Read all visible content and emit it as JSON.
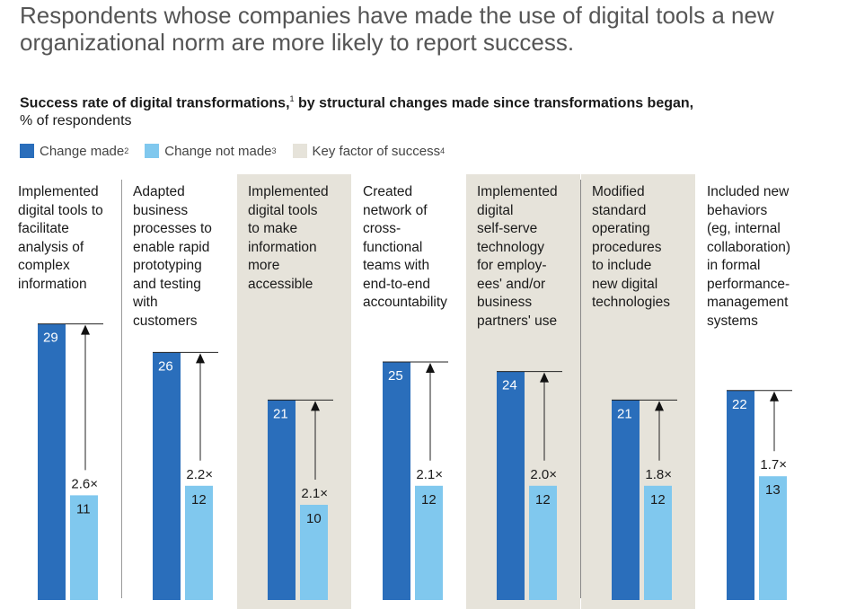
{
  "headline": "Respondents whose companies have made the use of digital tools a new organizational norm are more likely to report success.",
  "subtitle": {
    "bold": "Success rate of digital transformations,",
    "sup": "1",
    "bold_rest": " by structural changes made since transformations began,",
    "normal": "% of respondents"
  },
  "legend": {
    "made": {
      "label": "Change made",
      "sup": "2",
      "color": "#2a6ebb"
    },
    "not_made": {
      "label": "Change not made",
      "sup": "3",
      "color": "#80c8ee"
    },
    "key": {
      "label": "Key factor of success",
      "sup": "4",
      "color": "#e6e3da"
    }
  },
  "chart_data": {
    "type": "bar",
    "categories": [
      "Implemented digital tools to facilitate analysis of complex information",
      "Adapted business processes to enable rapid prototyping and testing with customers",
      "Implemented digital tools to make information more accessible",
      "Created network of cross-functional teams with end-to-end accountability",
      "Implemented digital self-serve technology for employees' and/or business partners' use",
      "Modified standard operating procedures to include new digital technologies",
      "Included new behaviors (eg, internal collaboration) in formal performance-management systems"
    ],
    "category_lines": [
      "Implemented\ndigital tools to\nfacilitate\nanalysis of\ncomplex\ninformation",
      "Adapted\nbusiness\nprocesses to\nenable rapid\nprototyping\nand testing\nwith\ncustomers",
      "Implemented\ndigital tools\nto make\ninformation\nmore\naccessible",
      "Created\nnetwork of\ncross-\nfunctional\nteams with\nend-to-end\naccountability",
      "Implemented\ndigital\nself-serve\ntechnology\nfor employ-\nees' and/or\nbusiness\npartners' use",
      "Modified\nstandard\noperating\nprocedures\nto include\nnew digital\ntechnologies",
      "Included new\nbehaviors\n(eg, internal\ncollaboration)\nin formal\nperformance-\nmanagement\nsystems"
    ],
    "series": [
      {
        "name": "Change made",
        "values": [
          29,
          26,
          21,
          25,
          24,
          21,
          22
        ]
      },
      {
        "name": "Change not made",
        "values": [
          11,
          12,
          10,
          12,
          12,
          12,
          13
        ]
      }
    ],
    "multipliers": [
      "2.6×",
      "2.2×",
      "2.1×",
      "2.1×",
      "2.0×",
      "1.8×",
      "1.7×"
    ],
    "key_factor": [
      false,
      false,
      true,
      false,
      true,
      true,
      false
    ],
    "ylim": [
      0,
      30
    ]
  }
}
